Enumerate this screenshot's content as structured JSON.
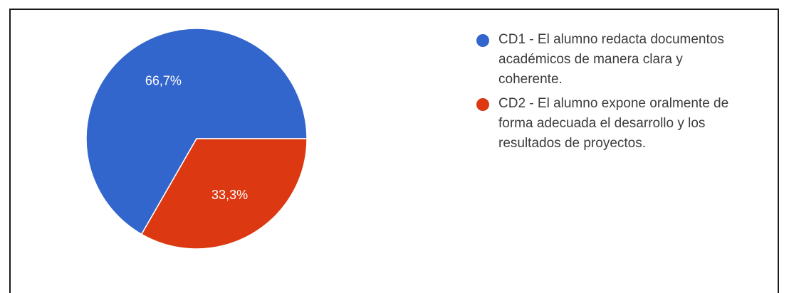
{
  "chart_data": {
    "type": "pie",
    "title": "",
    "slices": [
      {
        "label": "CD1 - El alumno redacta documentos\nacadémicos de manera clara y\ncoherente.",
        "value": 66.7,
        "display": "66,7%",
        "color": "#3366cc"
      },
      {
        "label": "CD2 - El alumno expone oralmente de\nforma adecuada el desarrollo y los\nresultados de proyectos.",
        "value": 33.3,
        "display": "33,3%",
        "color": "#dc3912"
      }
    ],
    "legend_position": "right"
  }
}
